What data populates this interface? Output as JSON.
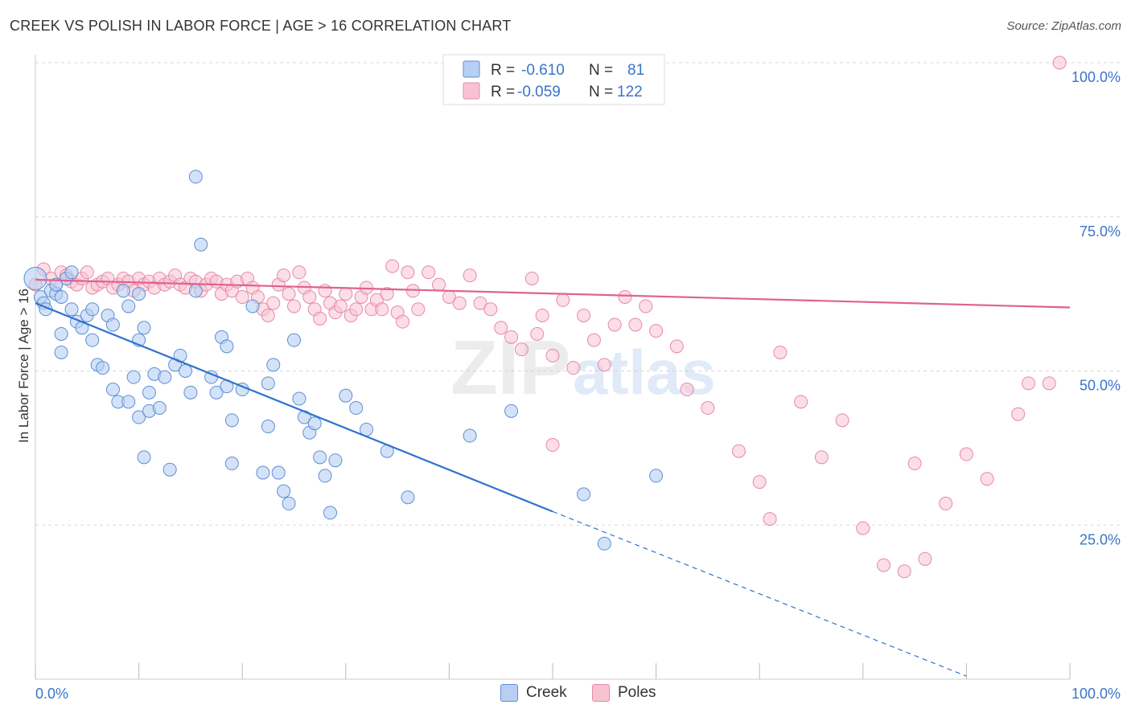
{
  "title": "CREEK VS POLISH IN LABOR FORCE | AGE > 16 CORRELATION CHART",
  "source": "Source: ZipAtlas.com",
  "watermark": {
    "zip": "ZIP",
    "atlas": "atlas"
  },
  "colors": {
    "creek_fill": "#b7cff2",
    "creek_stroke": "#5b8fd8",
    "creek_line": "#2f72d0",
    "poles_fill": "#f7c3d2",
    "poles_stroke": "#e889a8",
    "poles_line": "#e0628e",
    "axis_label": "#3b74c9",
    "grid": "#d9d9d9"
  },
  "legend": {
    "rows": [
      {
        "r_label": "R =",
        "r_value": "-0.610",
        "n_label": "N =",
        "n_value": "81"
      },
      {
        "r_label": "R =",
        "r_value": "-0.059",
        "n_label": "N =",
        "n_value": "122"
      }
    ]
  },
  "legend_bottom": {
    "creek": "Creek",
    "poles": "Poles"
  },
  "chart_data": {
    "type": "scatter",
    "title": "CREEK VS POLISH IN LABOR FORCE | AGE > 16 CORRELATION CHART",
    "xlabel": "",
    "ylabel": "In Labor Force | Age > 16",
    "xlim": [
      0,
      100
    ],
    "ylim": [
      0,
      100
    ],
    "x_tick_labels": [
      "0.0%",
      "100.0%"
    ],
    "y_tick_labels": [
      "25.0%",
      "50.0%",
      "75.0%",
      "100.0%"
    ],
    "y_ticks": [
      25,
      50,
      75,
      100
    ],
    "grid": "horizontal dashed",
    "legend_position": "top-center",
    "series": [
      {
        "name": "Creek",
        "r": -0.61,
        "n": 81,
        "trend": {
          "x0": 0,
          "y0": 61,
          "x1": 50,
          "y1": 27.2,
          "dash_to_x": 90,
          "dash_to_y": 0.5
        },
        "points": [
          [
            0,
            65
          ],
          [
            0.5,
            62
          ],
          [
            0.8,
            61
          ],
          [
            1.5,
            63
          ],
          [
            2,
            62.5
          ],
          [
            2.5,
            62
          ],
          [
            3,
            65
          ],
          [
            3.5,
            60
          ],
          [
            4,
            58
          ],
          [
            4.5,
            57
          ],
          [
            2.5,
            56
          ],
          [
            2.5,
            53
          ],
          [
            3.5,
            66
          ],
          [
            5,
            59
          ],
          [
            5.5,
            60
          ],
          [
            5.5,
            55
          ],
          [
            6,
            51
          ],
          [
            6.5,
            50.5
          ],
          [
            7,
            59
          ],
          [
            7.5,
            57.5
          ],
          [
            7.5,
            47
          ],
          [
            8,
            45
          ],
          [
            8.5,
            63
          ],
          [
            9,
            60.5
          ],
          [
            9,
            45
          ],
          [
            9.5,
            49
          ],
          [
            10,
            62.5
          ],
          [
            10,
            55
          ],
          [
            10,
            42.5
          ],
          [
            10.5,
            57
          ],
          [
            10.5,
            36
          ],
          [
            11,
            46.5
          ],
          [
            11,
            43.5
          ],
          [
            11.5,
            49.5
          ],
          [
            12,
            44
          ],
          [
            12.5,
            49
          ],
          [
            13,
            34
          ],
          [
            13.5,
            51
          ],
          [
            14,
            52.5
          ],
          [
            14.5,
            50
          ],
          [
            15,
            46.5
          ],
          [
            15.5,
            81.5
          ],
          [
            15.5,
            63
          ],
          [
            16,
            70.5
          ],
          [
            17,
            49
          ],
          [
            17.5,
            46.5
          ],
          [
            18,
            55.5
          ],
          [
            18.5,
            54
          ],
          [
            18.5,
            47.5
          ],
          [
            19,
            35
          ],
          [
            19,
            42
          ],
          [
            20,
            47
          ],
          [
            21,
            60.5
          ],
          [
            22,
            33.5
          ],
          [
            22.5,
            48
          ],
          [
            22.5,
            41
          ],
          [
            23,
            51
          ],
          [
            23.5,
            33.5
          ],
          [
            24,
            30.5
          ],
          [
            25,
            55
          ],
          [
            24.5,
            28.5
          ],
          [
            25.5,
            45.5
          ],
          [
            26,
            42.5
          ],
          [
            26.5,
            40
          ],
          [
            27,
            41.5
          ],
          [
            27.5,
            36
          ],
          [
            28,
            33
          ],
          [
            28.5,
            27
          ],
          [
            29,
            35.5
          ],
          [
            30,
            46
          ],
          [
            31,
            44
          ],
          [
            32,
            40.5
          ],
          [
            34,
            37
          ],
          [
            36,
            29.5
          ],
          [
            42,
            39.5
          ],
          [
            46,
            43.5
          ],
          [
            53,
            30
          ],
          [
            55,
            22
          ],
          [
            60,
            33
          ],
          [
            1,
            60
          ],
          [
            2,
            64
          ]
        ]
      },
      {
        "name": "Poles",
        "r": -0.059,
        "n": 122,
        "trend": {
          "x0": 0,
          "y0": 64.8,
          "x1": 100,
          "y1": 60.3
        },
        "points": [
          [
            0,
            64
          ],
          [
            0.8,
            66.5
          ],
          [
            1.5,
            65
          ],
          [
            2,
            64
          ],
          [
            2.5,
            66
          ],
          [
            3,
            65.5
          ],
          [
            3.5,
            64.5
          ],
          [
            4,
            64
          ],
          [
            4.5,
            65
          ],
          [
            5,
            66
          ],
          [
            5.5,
            63.5
          ],
          [
            6,
            64
          ],
          [
            6.5,
            64.5
          ],
          [
            7,
            65
          ],
          [
            7.5,
            63.5
          ],
          [
            8,
            64
          ],
          [
            8.5,
            65
          ],
          [
            9,
            64.5
          ],
          [
            9.5,
            63
          ],
          [
            10,
            65
          ],
          [
            10.5,
            64
          ],
          [
            11,
            64.5
          ],
          [
            11.5,
            63.5
          ],
          [
            12,
            65
          ],
          [
            12.5,
            64
          ],
          [
            13,
            64.5
          ],
          [
            13.5,
            65.5
          ],
          [
            14,
            64
          ],
          [
            14.5,
            63.5
          ],
          [
            15,
            65
          ],
          [
            15.5,
            64.5
          ],
          [
            16,
            63
          ],
          [
            16.5,
            64
          ],
          [
            17,
            65
          ],
          [
            17.5,
            64.5
          ],
          [
            18,
            62.5
          ],
          [
            18.5,
            64
          ],
          [
            19,
            63
          ],
          [
            19.5,
            64.5
          ],
          [
            20,
            62
          ],
          [
            20.5,
            65
          ],
          [
            21,
            63.5
          ],
          [
            21.5,
            62
          ],
          [
            22,
            60
          ],
          [
            22.5,
            59
          ],
          [
            23,
            61
          ],
          [
            23.5,
            64
          ],
          [
            24,
            65.5
          ],
          [
            24.5,
            62.5
          ],
          [
            25,
            60.5
          ],
          [
            25.5,
            66
          ],
          [
            26,
            63.5
          ],
          [
            26.5,
            62
          ],
          [
            27,
            60
          ],
          [
            27.5,
            58.5
          ],
          [
            28,
            63
          ],
          [
            28.5,
            61
          ],
          [
            29,
            59.5
          ],
          [
            29.5,
            60.5
          ],
          [
            30,
            62.5
          ],
          [
            30.5,
            59
          ],
          [
            31,
            60
          ],
          [
            31.5,
            62
          ],
          [
            32,
            63.5
          ],
          [
            32.5,
            60
          ],
          [
            33,
            61.5
          ],
          [
            33.5,
            60
          ],
          [
            34,
            62.5
          ],
          [
            34.5,
            67
          ],
          [
            35,
            59.5
          ],
          [
            35.5,
            58
          ],
          [
            36,
            66
          ],
          [
            36.5,
            63
          ],
          [
            37,
            60
          ],
          [
            38,
            66
          ],
          [
            39,
            64
          ],
          [
            40,
            62
          ],
          [
            41,
            61
          ],
          [
            42,
            65.5
          ],
          [
            43,
            61
          ],
          [
            44,
            60
          ],
          [
            45,
            57
          ],
          [
            46,
            55.5
          ],
          [
            47,
            53.5
          ],
          [
            48,
            65
          ],
          [
            48.5,
            56
          ],
          [
            49,
            59
          ],
          [
            50,
            52.5
          ],
          [
            50,
            38
          ],
          [
            51,
            61.5
          ],
          [
            52,
            50.5
          ],
          [
            53,
            59
          ],
          [
            54,
            55
          ],
          [
            55,
            51
          ],
          [
            56,
            57.5
          ],
          [
            57,
            62
          ],
          [
            58,
            57.5
          ],
          [
            59,
            60.5
          ],
          [
            60,
            56.5
          ],
          [
            62,
            54
          ],
          [
            63,
            47
          ],
          [
            65,
            44
          ],
          [
            68,
            37
          ],
          [
            70,
            32
          ],
          [
            71,
            26
          ],
          [
            72,
            53
          ],
          [
            74,
            45
          ],
          [
            76,
            36
          ],
          [
            78,
            42
          ],
          [
            80,
            24.5
          ],
          [
            82,
            18.5
          ],
          [
            84,
            17.5
          ],
          [
            85,
            35
          ],
          [
            86,
            19.5
          ],
          [
            88,
            28.5
          ],
          [
            90,
            36.5
          ],
          [
            92,
            32.5
          ],
          [
            95,
            43
          ],
          [
            96,
            48
          ],
          [
            98,
            48
          ],
          [
            99,
            100
          ]
        ]
      }
    ]
  }
}
